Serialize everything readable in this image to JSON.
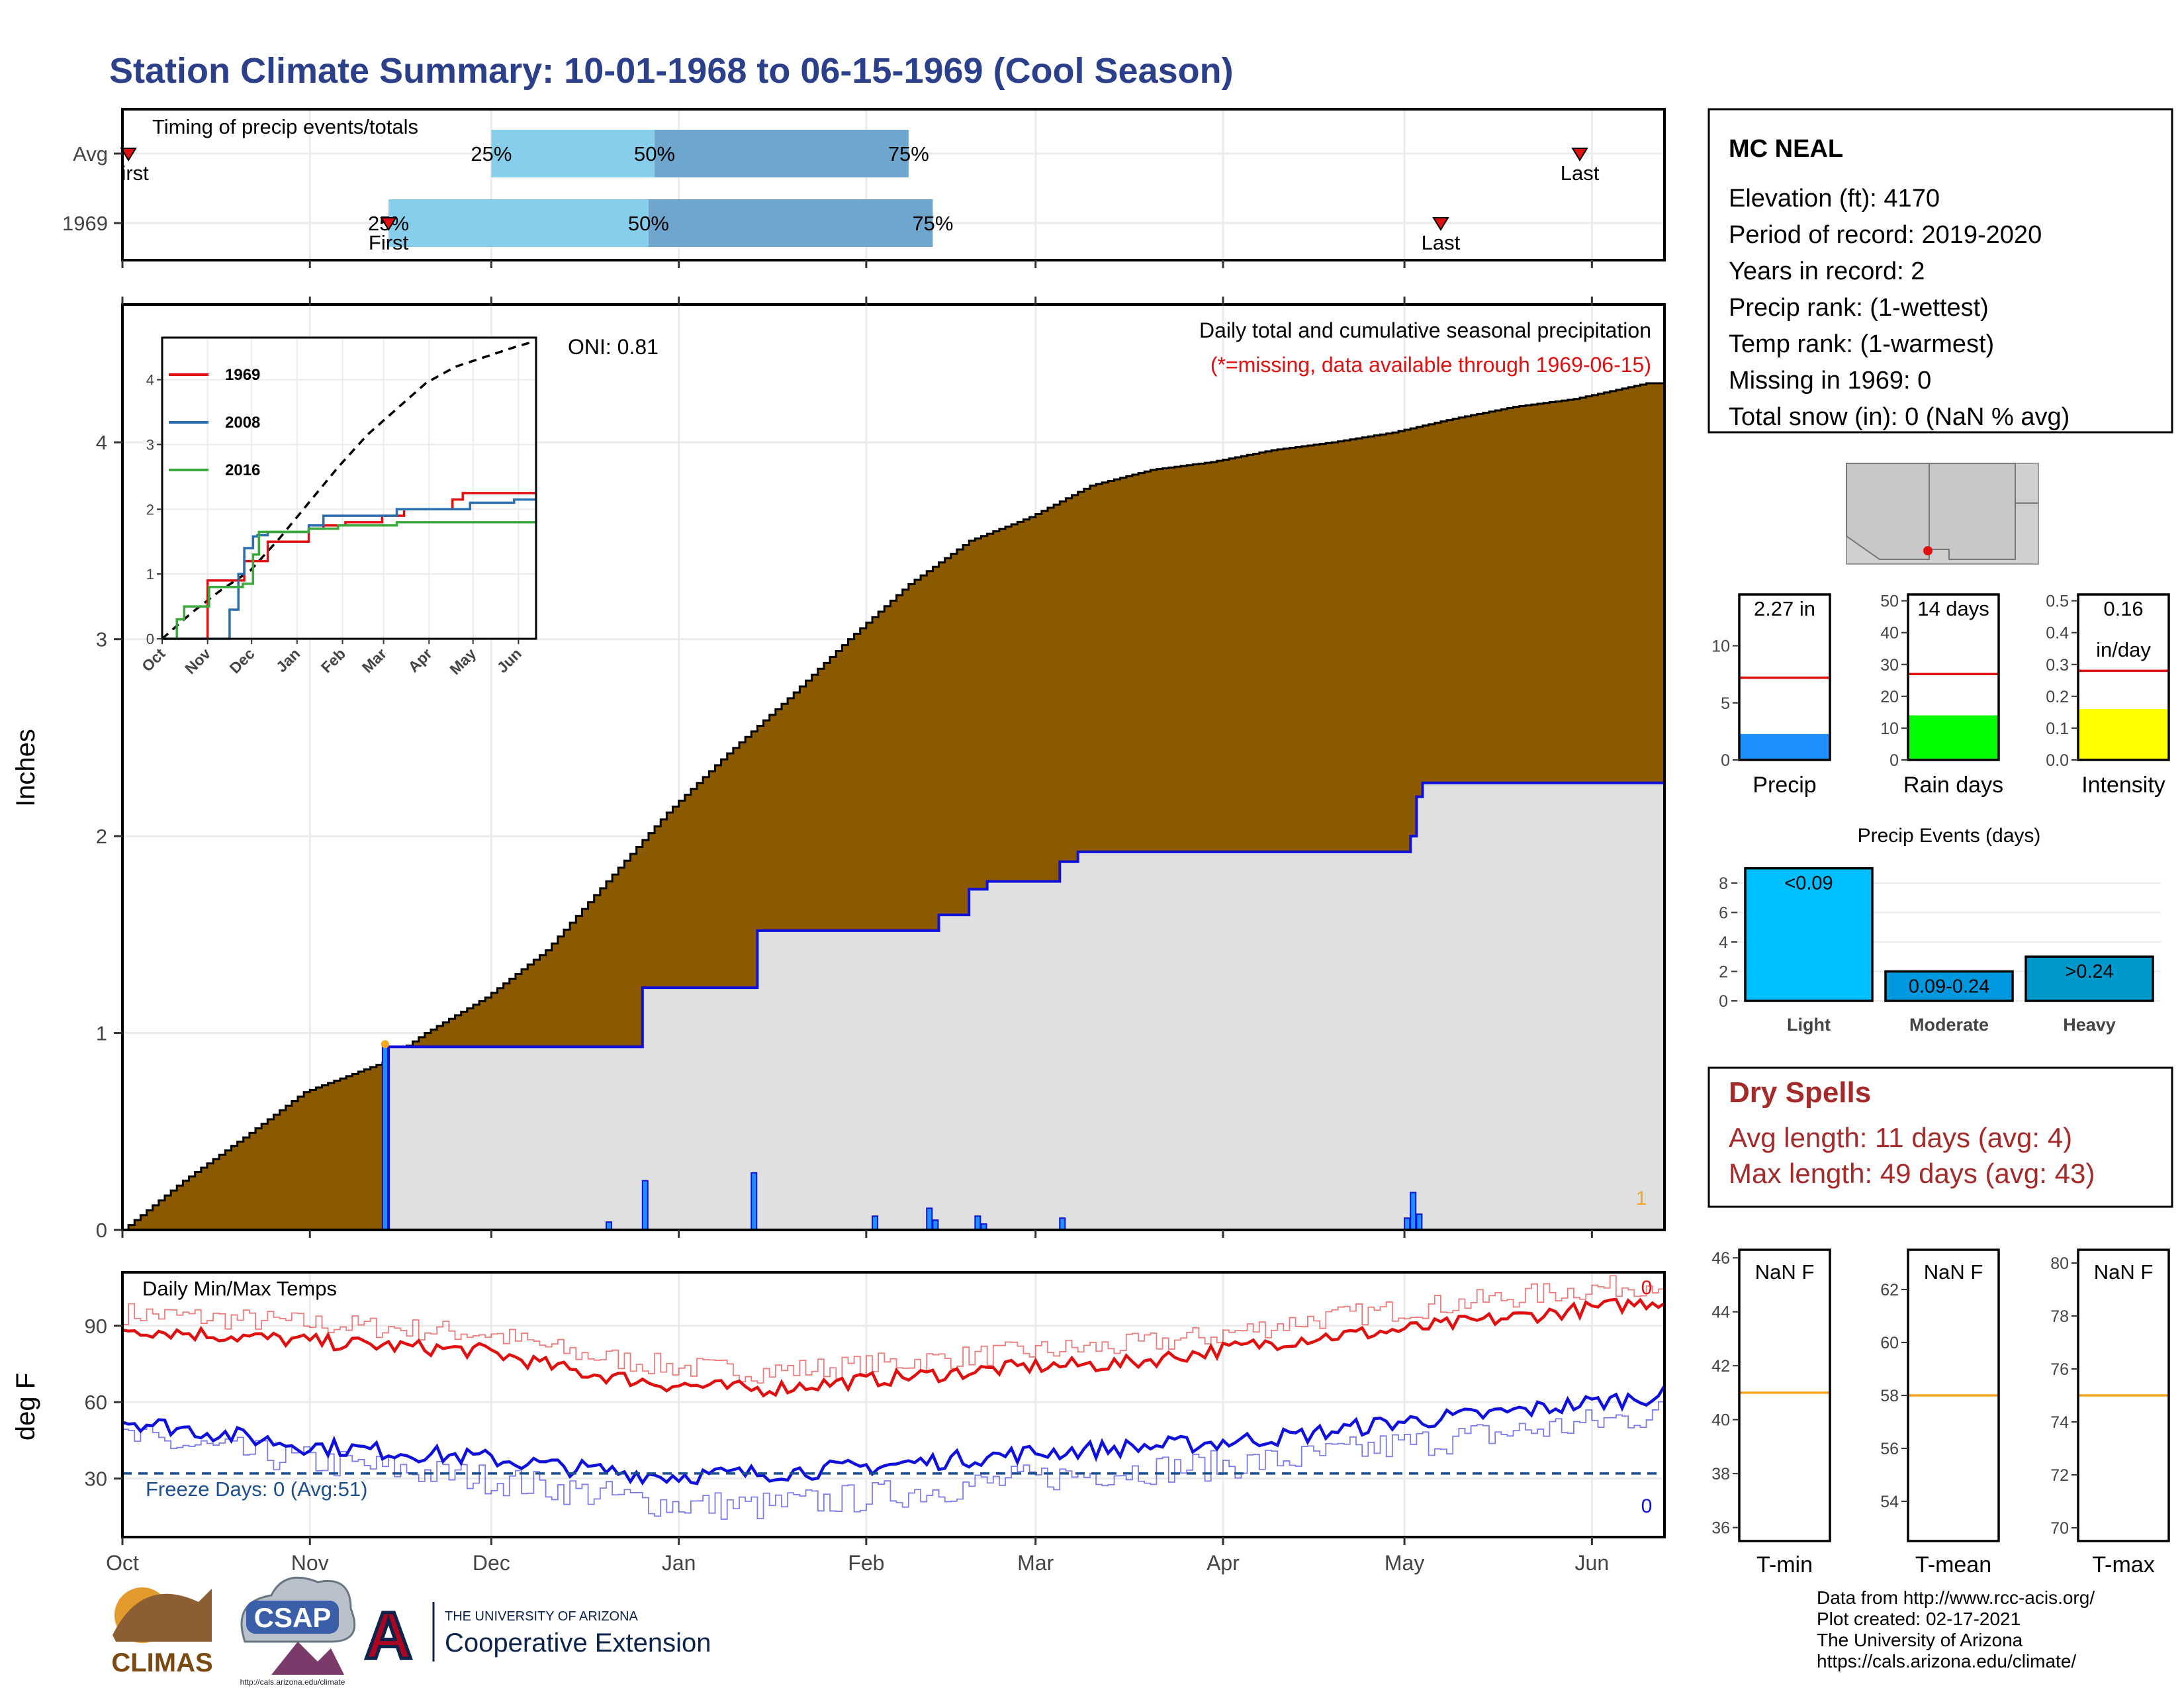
{
  "title": "Station Climate Summary: 10-01-1968 to 06-15-1969 (Cool Season)",
  "colors": {
    "title": "#2b3f8a",
    "precip_fill": "#8b5a00",
    "avg_fill": "#e0e0e0",
    "avg_line": "#1010dd",
    "q_light": "#87ceeb",
    "q_dark": "#6ea6cd",
    "red": "#e01010",
    "blue": "#1010dd",
    "orange": "#f5a623",
    "dry": "#a52a2a",
    "rain_green": "#00ff00",
    "intensity_yellow": "#ffff00",
    "precip_blue": "#1e90ff",
    "event_light": "#00bfff",
    "event_mid": "#0099e0",
    "event_heavy": "#0099cc"
  },
  "timing": {
    "label": "Timing of precip events/totals",
    "rows": [
      {
        "label": "Avg",
        "first": "First",
        "first_shown": "irst",
        "last": "Last",
        "q25": "25%",
        "q50": "50%",
        "q75": "75%",
        "first_day": 1,
        "last_day": 241,
        "q25_day": 61,
        "q50_day": 88,
        "q75_day": 130
      },
      {
        "label": "1969",
        "first": "First",
        "last": "Last",
        "q25": "25%",
        "q50": "50%",
        "q75": "75%",
        "first_day": 44,
        "last_day": 218,
        "q25_day": 44,
        "q50_day": 87,
        "q75_day": 134
      }
    ]
  },
  "months": [
    "Oct",
    "Nov",
    "Dec",
    "Jan",
    "Feb",
    "Mar",
    "Apr",
    "May",
    "Jun"
  ],
  "month_start_day": [
    0,
    31,
    61,
    92,
    123,
    151,
    182,
    212,
    243
  ],
  "precip": {
    "ylabel": "Inches",
    "yticks": [
      0,
      1,
      2,
      3,
      4
    ],
    "ylim": [
      0,
      4.7
    ],
    "note1": "Daily total and cumulative seasonal precipitation",
    "note2": "(*=missing, data available through 1969-06-15)",
    "oni": "ONI: 0.81",
    "missing_count": "1",
    "cumulative_observed": {
      "day": [
        0,
        10,
        20,
        30,
        43,
        50,
        60,
        70,
        80,
        90,
        100,
        110,
        120,
        130,
        140,
        150,
        160,
        170,
        180,
        190,
        200,
        210,
        220,
        230,
        240,
        252
      ],
      "value": [
        0.0,
        0.25,
        0.47,
        0.7,
        0.85,
        1.0,
        1.18,
        1.42,
        1.77,
        2.12,
        2.42,
        2.7,
        3.0,
        3.28,
        3.5,
        3.62,
        3.78,
        3.86,
        3.9,
        3.96,
        4.0,
        4.05,
        4.12,
        4.18,
        4.22,
        4.3
      ]
    },
    "cumulative_avg": {
      "day": [
        0,
        43,
        44,
        80,
        86,
        104,
        105,
        126,
        135,
        140,
        143,
        155,
        158,
        212,
        213,
        214,
        215,
        252
      ],
      "value": [
        0.0,
        0.0,
        0.93,
        0.93,
        1.23,
        1.23,
        1.52,
        1.52,
        1.6,
        1.73,
        1.77,
        1.87,
        1.92,
        1.92,
        2.0,
        2.2,
        2.27,
        2.27
      ]
    },
    "daily_bars": {
      "day": [
        43,
        80,
        86,
        104,
        124,
        133,
        134,
        141,
        142,
        155,
        212,
        213,
        214
      ],
      "value": [
        0.93,
        0.04,
        0.25,
        0.29,
        0.07,
        0.11,
        0.05,
        0.07,
        0.03,
        0.06,
        0.06,
        0.19,
        0.08
      ]
    }
  },
  "inset": {
    "yticks": [
      0,
      1,
      2,
      3,
      4
    ],
    "series": [
      {
        "name": "1969",
        "color": "#e01010",
        "day": [
          0,
          15,
          30,
          31,
          55,
          56,
          68,
          72,
          85,
          100,
          110,
          125,
          150,
          165,
          180,
          198,
          205,
          240,
          255
        ],
        "value": [
          0.0,
          0.0,
          0.0,
          0.9,
          0.9,
          1.2,
          1.2,
          1.5,
          1.5,
          1.7,
          1.75,
          1.8,
          1.9,
          2.0,
          2.0,
          2.15,
          2.25,
          2.25,
          2.25
        ]
      },
      {
        "name": "2008",
        "color": "#2a6ead",
        "day": [
          0,
          40,
          46,
          52,
          56,
          62,
          65,
          72,
          100,
          110,
          150,
          160,
          200,
          210,
          240,
          255
        ],
        "value": [
          0.0,
          0.0,
          0.45,
          1.0,
          1.4,
          1.58,
          1.6,
          1.65,
          1.75,
          1.9,
          1.9,
          2.0,
          2.0,
          2.1,
          2.15,
          2.15
        ]
      },
      {
        "name": "2016",
        "color": "#3aa83a",
        "day": [
          0,
          10,
          15,
          25,
          32,
          40,
          55,
          62,
          66,
          90,
          100,
          120,
          160,
          200,
          255
        ],
        "value": [
          0.0,
          0.3,
          0.5,
          0.5,
          0.8,
          0.8,
          0.85,
          1.3,
          1.65,
          1.65,
          1.7,
          1.75,
          1.8,
          1.8,
          1.82
        ]
      }
    ],
    "avg_dashed": {
      "day": [
        0,
        20,
        40,
        60,
        80,
        100,
        120,
        140,
        160,
        180,
        200,
        220,
        240,
        255
      ],
      "value": [
        0.0,
        0.4,
        0.75,
        1.05,
        1.55,
        2.1,
        2.65,
        3.15,
        3.55,
        3.95,
        4.2,
        4.35,
        4.5,
        4.6
      ]
    }
  },
  "temps": {
    "label": "Daily Min/Max Temps",
    "ylabel": "deg F",
    "yticks": [
      30,
      60,
      90
    ],
    "ylim": [
      7,
      111
    ],
    "freeze": "Freeze Days: 0 (Avg:51)",
    "freeze_value": 32,
    "max_count": "0",
    "min_count": "0",
    "tmax_avg": {
      "day": [
        0,
        30,
        60,
        75,
        90,
        105,
        120,
        135,
        150,
        165,
        180,
        195,
        210,
        225,
        240,
        255
      ],
      "value": [
        89,
        84,
        80,
        72,
        67,
        65,
        68,
        71,
        74,
        75,
        80,
        85,
        88,
        92,
        96,
        100
      ]
    },
    "tmax_rec": {
      "day": [
        0,
        30,
        60,
        75,
        90,
        105,
        120,
        135,
        150,
        165,
        180,
        195,
        210,
        225,
        240,
        255
      ],
      "value": [
        95,
        91,
        87,
        79,
        74,
        72,
        74,
        77,
        80,
        82,
        86,
        92,
        96,
        100,
        104,
        107
      ]
    },
    "tmin_avg": {
      "day": [
        0,
        30,
        60,
        75,
        90,
        105,
        120,
        135,
        150,
        165,
        180,
        195,
        210,
        225,
        240,
        255
      ],
      "value": [
        53,
        43,
        38,
        34,
        31,
        32,
        34,
        37,
        40,
        42,
        44,
        47,
        52,
        55,
        59,
        63
      ]
    },
    "tmin_rec": {
      "day": [
        0,
        30,
        60,
        75,
        90,
        105,
        120,
        135,
        150,
        165,
        180,
        195,
        210,
        225,
        240,
        255
      ],
      "value": [
        46,
        37,
        30,
        25,
        20,
        19,
        22,
        26,
        30,
        33,
        35,
        38,
        43,
        47,
        51,
        56
      ]
    }
  },
  "station": {
    "name": "MC NEAL",
    "lines": [
      "Elevation (ft): 4170",
      "Period of record: 2019-2020",
      "Years in record: 2",
      "Precip rank:  (1-wettest)",
      "Temp rank:  (1-warmest)",
      "Missing in 1969: 0",
      "Total snow (in): 0 (NaN % avg)"
    ]
  },
  "gauges": [
    {
      "label": "Precip",
      "value_label": "2.27 in",
      "value": 2.27,
      "avg": 7.2,
      "ymax": 14.5,
      "yticks": [
        0,
        5,
        10
      ],
      "color": "#1e90ff"
    },
    {
      "label": "Rain days",
      "value_label": "14 days",
      "value": 14,
      "avg": 27,
      "ymax": 52,
      "yticks": [
        0,
        10,
        20,
        30,
        40,
        50
      ],
      "color": "#00ff00"
    },
    {
      "label": "Intensity",
      "value_label": "0.16",
      "value_label2": "in/day",
      "value": 0.16,
      "avg": 0.28,
      "ymax": 0.52,
      "yticks": [
        0.0,
        0.1,
        0.2,
        0.3,
        0.4,
        0.5
      ],
      "color": "#ffff00"
    }
  ],
  "events": {
    "title": "Precip Events (days)",
    "categories": [
      "Light",
      "Moderate",
      "Heavy"
    ],
    "labels": [
      "<0.09",
      "0.09-0.24",
      ">0.24"
    ],
    "values": [
      9,
      2,
      3
    ],
    "yticks": [
      0,
      2,
      4,
      6,
      8
    ],
    "ymax": 9.3
  },
  "dry": {
    "title": "Dry Spells",
    "avg": "Avg length: 11 days (avg: 4)",
    "max": "Max length: 49 days (avg: 43)"
  },
  "temp_gauges": [
    {
      "label": "T-min",
      "value_label": "NaN F",
      "avg": 41,
      "ymin": 35.5,
      "ymax": 46.3,
      "yticks": [
        36,
        38,
        40,
        42,
        44,
        46
      ]
    },
    {
      "label": "T-mean",
      "value_label": "NaN F",
      "avg": 58,
      "ymin": 52.5,
      "ymax": 63.5,
      "yticks": [
        54,
        56,
        58,
        60,
        62
      ]
    },
    {
      "label": "T-max",
      "value_label": "NaN F",
      "avg": 75,
      "ymin": 69.5,
      "ymax": 80.5,
      "yticks": [
        70,
        72,
        74,
        76,
        78,
        80
      ]
    }
  ],
  "footer": [
    "Data from http://www.rcc-acis.org/",
    "Plot created: 02-17-2021",
    "The University of Arizona",
    "https://cals.arizona.edu/climate/"
  ],
  "logos": {
    "climas": "CLIMAS",
    "csap": "CSAP",
    "csap_url": "http://cals.arizona.edu/climate",
    "ua_small": "THE UNIVERSITY OF ARIZONA",
    "ua_big": "Cooperative Extension",
    "ua_letter": "A"
  }
}
